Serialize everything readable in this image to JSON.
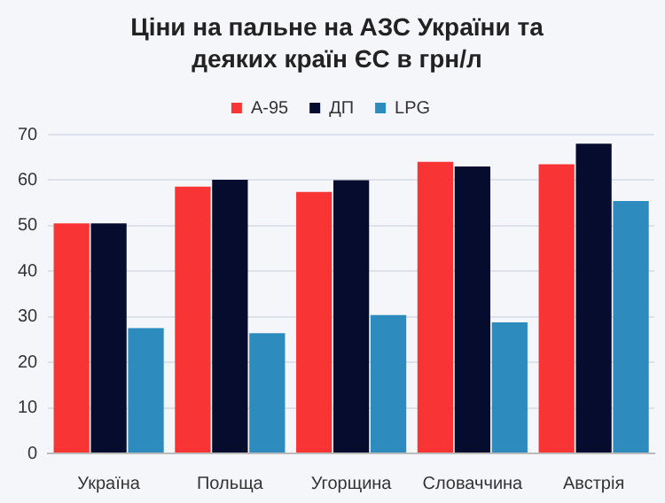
{
  "chart_data": {
    "type": "bar",
    "title": "Ціни на пальне на АЗС України та деяких країн ЄС в грн/л",
    "categories": [
      "Україна",
      "Польща",
      "Угорщина",
      "Словаччина",
      "Австрія"
    ],
    "series": [
      {
        "name": "А-95",
        "color": "#f93434",
        "values": [
          50.5,
          58.6,
          57.4,
          64.0,
          63.5
        ]
      },
      {
        "name": "ДП",
        "color": "#050c2e",
        "values": [
          50.5,
          60.1,
          60.0,
          63.0,
          68.0
        ]
      },
      {
        "name": "LPG",
        "color": "#2e8bbe",
        "values": [
          27.5,
          26.4,
          30.4,
          28.8,
          55.4
        ]
      }
    ],
    "ylim": [
      0,
      70
    ],
    "yticks": [
      0,
      10,
      20,
      30,
      40,
      50,
      60,
      70
    ],
    "grid": "y",
    "legend": "top"
  }
}
